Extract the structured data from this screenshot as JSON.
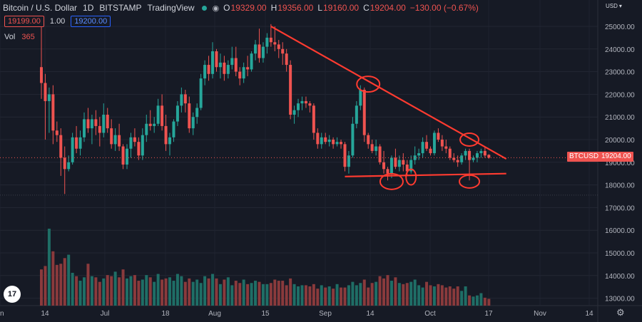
{
  "header": {
    "symbol": "Bitcoin / U.S. Dollar",
    "interval": "1D",
    "exchange": "BITSTAMP",
    "source": "TradingView",
    "o_label": "O",
    "o_value": "19329.00",
    "h_label": "H",
    "h_value": "19356.00",
    "l_label": "L",
    "l_value": "19160.00",
    "c_label": "C",
    "c_value": "19204.00",
    "change": "−130.00 (−0.67%)"
  },
  "trade": {
    "sell_price": "19199.00",
    "spread": "1.00",
    "buy_price": "19200.00"
  },
  "volume": {
    "label": "Vol",
    "value": "365"
  },
  "currency": "USD",
  "price_badge": {
    "symbol": "BTCUSD",
    "price": "19204.00"
  },
  "logo_text": "17",
  "colors": {
    "background": "#161a25",
    "up": "#26a69a",
    "down": "#ef5350",
    "annotation": "#ff3b30",
    "text": "#d1d4dc"
  },
  "chart_data": {
    "type": "candlestick",
    "y_ticks": [
      "25000.00",
      "24000.00",
      "23000.00",
      "22000.00",
      "21000.00",
      "20000.00",
      "19000.00",
      "18000.00",
      "17000.00",
      "16000.00",
      "15000.00",
      "14000.00",
      "13000.00"
    ],
    "x_ticks": [
      "un",
      "14",
      "Jul",
      "18",
      "Aug",
      "15",
      "Sep",
      "14",
      "Oct",
      "17",
      "Nov",
      "14"
    ],
    "ylim": [
      12700,
      25600
    ],
    "last_price": 19204,
    "candles": [
      [
        23200,
        25200,
        21800,
        22500
      ],
      [
        22500,
        22900,
        20000,
        21700
      ],
      [
        21700,
        22300,
        20300,
        22000
      ],
      [
        22000,
        22400,
        19800,
        20400
      ],
      [
        20400,
        20800,
        19900,
        20200
      ],
      [
        20200,
        20500,
        18400,
        19200
      ],
      [
        19200,
        19700,
        17600,
        18700
      ],
      [
        18700,
        19300,
        18600,
        19000
      ],
      [
        19000,
        20300,
        18900,
        20100
      ],
      [
        20100,
        20600,
        19400,
        19600
      ],
      [
        19600,
        20400,
        19300,
        20100
      ],
      [
        20100,
        21200,
        19900,
        20900
      ],
      [
        20900,
        21400,
        20300,
        20500
      ],
      [
        20500,
        21100,
        19800,
        20900
      ],
      [
        20900,
        21300,
        20200,
        20600
      ],
      [
        20600,
        21000,
        19700,
        20300
      ],
      [
        20300,
        21600,
        20100,
        21100
      ],
      [
        21100,
        21400,
        20300,
        20500
      ],
      [
        20500,
        20900,
        19600,
        19800
      ],
      [
        19800,
        20500,
        19500,
        20200
      ],
      [
        20200,
        20700,
        19500,
        19700
      ],
      [
        19700,
        19800,
        18700,
        18900
      ],
      [
        18900,
        19800,
        18700,
        19600
      ],
      [
        19600,
        20300,
        19200,
        20100
      ],
      [
        20100,
        20500,
        19700,
        19900
      ],
      [
        19900,
        20100,
        19100,
        19300
      ],
      [
        19300,
        20500,
        19100,
        20200
      ],
      [
        20200,
        21100,
        19900,
        20700
      ],
      [
        20700,
        21300,
        20400,
        20600
      ],
      [
        20600,
        21000,
        20300,
        20700
      ],
      [
        20700,
        21800,
        20600,
        21500
      ],
      [
        21500,
        22000,
        20400,
        20600
      ],
      [
        20600,
        21100,
        19500,
        19800
      ],
      [
        19800,
        20300,
        19300,
        20100
      ],
      [
        20100,
        20900,
        19900,
        20800
      ],
      [
        20800,
        21700,
        20600,
        21500
      ],
      [
        21500,
        22300,
        21200,
        22000
      ],
      [
        22000,
        22200,
        21200,
        21600
      ],
      [
        21600,
        21900,
        20300,
        20500
      ],
      [
        20500,
        21200,
        20200,
        21000
      ],
      [
        21000,
        21600,
        20700,
        21400
      ],
      [
        21400,
        22900,
        21300,
        22700
      ],
      [
        22700,
        23500,
        22400,
        23300
      ],
      [
        23300,
        23700,
        22600,
        22900
      ],
      [
        22900,
        24300,
        22700,
        23900
      ],
      [
        23900,
        24000,
        23000,
        23200
      ],
      [
        23200,
        23800,
        22700,
        23400
      ],
      [
        23400,
        23700,
        22600,
        22900
      ],
      [
        22900,
        23500,
        22700,
        23300
      ],
      [
        23300,
        24100,
        23100,
        23600
      ],
      [
        23600,
        24100,
        22800,
        23000
      ],
      [
        23000,
        23200,
        22400,
        22700
      ],
      [
        22700,
        23400,
        22500,
        23200
      ],
      [
        23200,
        23700,
        22800,
        23100
      ],
      [
        23100,
        23900,
        23000,
        23800
      ],
      [
        23800,
        24400,
        23500,
        24200
      ],
      [
        24200,
        24900,
        23400,
        23600
      ],
      [
        23600,
        24300,
        23400,
        24100
      ],
      [
        24100,
        24700,
        23800,
        24500
      ],
      [
        24500,
        25100,
        24100,
        24300
      ],
      [
        24300,
        25000,
        23900,
        24200
      ],
      [
        24200,
        24400,
        23600,
        24000
      ],
      [
        24000,
        24300,
        23300,
        23800
      ],
      [
        23800,
        24000,
        23000,
        23300
      ],
      [
        23300,
        23500,
        20900,
        21100
      ],
      [
        21100,
        21500,
        20700,
        21300
      ],
      [
        21300,
        21800,
        21000,
        21600
      ],
      [
        21600,
        21900,
        21300,
        21700
      ],
      [
        21700,
        21900,
        21400,
        21600
      ],
      [
        21600,
        21700,
        21200,
        21500
      ],
      [
        21500,
        21600,
        20000,
        20300
      ],
      [
        20300,
        20500,
        19600,
        19800
      ],
      [
        19800,
        20300,
        19600,
        20100
      ],
      [
        20100,
        20300,
        19800,
        19900
      ],
      [
        19900,
        20200,
        19700,
        20000
      ],
      [
        20000,
        20100,
        19600,
        19800
      ],
      [
        19800,
        20100,
        19700,
        19900
      ],
      [
        19900,
        20000,
        19600,
        19800
      ],
      [
        19800,
        19900,
        18600,
        18800
      ],
      [
        18800,
        19500,
        18500,
        19300
      ],
      [
        19300,
        21000,
        19200,
        20700
      ],
      [
        20700,
        21700,
        20500,
        21500
      ],
      [
        21500,
        22400,
        21300,
        22200
      ],
      [
        22200,
        22300,
        19900,
        20200
      ],
      [
        20200,
        20300,
        19600,
        19800
      ],
      [
        19800,
        20000,
        19400,
        19500
      ],
      [
        19500,
        20000,
        19300,
        19700
      ],
      [
        19700,
        19800,
        18900,
        19000
      ],
      [
        19000,
        19500,
        18500,
        18700
      ],
      [
        18700,
        18800,
        18200,
        18500
      ],
      [
        18500,
        19300,
        18300,
        19200
      ],
      [
        19200,
        19600,
        18700,
        18800
      ],
      [
        18800,
        19300,
        18600,
        19100
      ],
      [
        19100,
        19400,
        18600,
        18900
      ],
      [
        18900,
        19100,
        18400,
        18600
      ],
      [
        18600,
        19300,
        18500,
        19100
      ],
      [
        19100,
        19700,
        18900,
        19300
      ],
      [
        19300,
        19600,
        19100,
        19400
      ],
      [
        19400,
        20100,
        19200,
        19900
      ],
      [
        19900,
        20200,
        19500,
        19600
      ],
      [
        19600,
        19700,
        19300,
        19400
      ],
      [
        19400,
        20400,
        19300,
        20300
      ],
      [
        20300,
        20500,
        19900,
        20000
      ],
      [
        20000,
        20200,
        19500,
        19700
      ],
      [
        19700,
        20000,
        19400,
        19600
      ],
      [
        19600,
        19700,
        19100,
        19200
      ],
      [
        19200,
        19400,
        19000,
        19100
      ],
      [
        19100,
        19300,
        18800,
        19000
      ],
      [
        19000,
        19400,
        18900,
        19300
      ],
      [
        19300,
        19600,
        19100,
        19500
      ],
      [
        19500,
        19600,
        18200,
        19100
      ],
      [
        19100,
        19300,
        19000,
        19200
      ],
      [
        19200,
        19500,
        19000,
        19400
      ],
      [
        19400,
        19600,
        19200,
        19500
      ],
      [
        19500,
        19700,
        19200,
        19300
      ],
      [
        19329,
        19356,
        19160,
        19204
      ]
    ],
    "volumes": [
      3200,
      3500,
      6800,
      4800,
      3600,
      3700,
      4200,
      4500,
      2900,
      2600,
      2200,
      2500,
      3700,
      2600,
      2500,
      2100,
      2400,
      2700,
      2600,
      3000,
      2500,
      3200,
      2400,
      2600,
      2700,
      2200,
      2300,
      2700,
      2500,
      2100,
      2800,
      2300,
      2400,
      2500,
      2200,
      2800,
      2600,
      2100,
      2400,
      2100,
      2300,
      2000,
      2600,
      2400,
      2800,
      2400,
      1900,
      2300,
      2500,
      1800,
      2200,
      2000,
      2300,
      1900,
      2000,
      2200,
      2100,
      1900,
      1900,
      2000,
      2300,
      2200,
      2200,
      1800,
      2400,
      1900,
      1700,
      1800,
      1800,
      1700,
      1900,
      1500,
      1800,
      1600,
      1700,
      1500,
      1900,
      1600,
      1600,
      1800,
      2100,
      1800,
      2000,
      2300,
      1600,
      2000,
      2100,
      2600,
      2400,
      2700,
      2200,
      2500,
      2000,
      1900,
      2000,
      2100,
      2300,
      1800,
      1600,
      2100,
      1800,
      1700,
      1900,
      1800,
      1600,
      1700,
      1500,
      1700,
      1300,
      1700,
      900,
      800,
      900,
      1100,
      700,
      600
    ]
  },
  "annotations": {
    "lines": [
      {
        "name": "resistance-trendline",
        "from": [
          59,
          25000
        ],
        "to": [
          118,
          19150
        ]
      },
      {
        "name": "support-line",
        "from": [
          78,
          18370
        ],
        "to": [
          118,
          18500
        ]
      }
    ],
    "circles": [
      {
        "name": "circle-top-1",
        "at": [
          84,
          22450
        ]
      },
      {
        "name": "circle-top-2",
        "at": [
          110,
          20000
        ]
      },
      {
        "name": "circle-bottom-1",
        "at": [
          90,
          18150
        ]
      },
      {
        "name": "circle-bottom-2",
        "at": [
          95,
          18350
        ]
      },
      {
        "name": "circle-bottom-3",
        "at": [
          110,
          18150
        ]
      }
    ]
  }
}
